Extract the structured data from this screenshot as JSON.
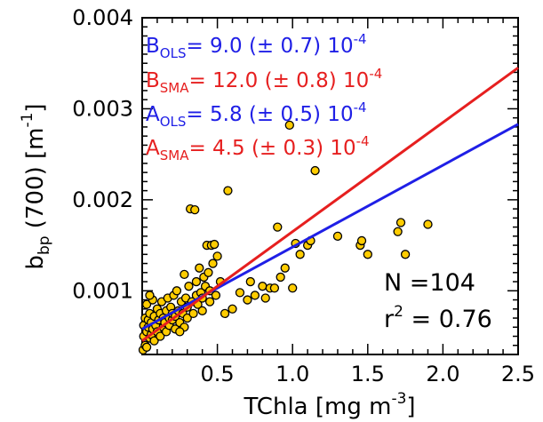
{
  "chart_data": {
    "type": "scatter",
    "title": "",
    "xlabel": {
      "main": "TChla [mg m",
      "sup": "-3",
      "end": "]"
    },
    "ylabel": {
      "main": "b",
      "sub": "bp",
      "mid": " (700) [m",
      "sup": "-1",
      "end": "]"
    },
    "xlim": [
      0,
      2.5
    ],
    "ylim": [
      0.0003,
      0.004
    ],
    "xticks": [
      "0.5",
      "1.0",
      "1.5",
      "2.0",
      "2.5"
    ],
    "xtick_values": [
      0.5,
      1.0,
      1.5,
      2.0,
      2.5
    ],
    "yticks": [
      "0.001",
      "0.002",
      "0.003",
      "0.004"
    ],
    "ytick_values": [
      0.001,
      0.002,
      0.003,
      0.004
    ],
    "grid": false,
    "marker_fill": "#ffcc00",
    "marker_edge": "#000000",
    "points": [
      [
        0.0,
        0.00035
      ],
      [
        0.01,
        0.0005
      ],
      [
        0.01,
        0.00062
      ],
      [
        0.02,
        0.0007
      ],
      [
        0.02,
        0.0004
      ],
      [
        0.03,
        0.00055
      ],
      [
        0.03,
        0.00085
      ],
      [
        0.04,
        0.0006
      ],
      [
        0.04,
        0.00068
      ],
      [
        0.05,
        0.00048
      ],
      [
        0.05,
        0.00075
      ],
      [
        0.06,
        0.00052
      ],
      [
        0.06,
        0.00065
      ],
      [
        0.07,
        0.00058
      ],
      [
        0.07,
        0.0009
      ],
      [
        0.08,
        0.00072
      ],
      [
        0.08,
        0.00045
      ],
      [
        0.09,
        0.00062
      ],
      [
        0.1,
        0.0008
      ],
      [
        0.1,
        0.00055
      ],
      [
        0.11,
        0.00068
      ],
      [
        0.12,
        0.0005
      ],
      [
        0.12,
        0.00075
      ],
      [
        0.13,
        0.00088
      ],
      [
        0.14,
        0.0006
      ],
      [
        0.14,
        0.0007
      ],
      [
        0.15,
        0.00065
      ],
      [
        0.16,
        0.00078
      ],
      [
        0.16,
        0.00055
      ],
      [
        0.17,
        0.00092
      ],
      [
        0.18,
        0.0007
      ],
      [
        0.18,
        0.00062
      ],
      [
        0.19,
        0.00082
      ],
      [
        0.2,
        0.00068
      ],
      [
        0.2,
        0.00075
      ],
      [
        0.21,
        0.00095
      ],
      [
        0.22,
        0.00072
      ],
      [
        0.22,
        0.00058
      ],
      [
        0.23,
        0.001
      ],
      [
        0.24,
        0.00078
      ],
      [
        0.25,
        0.00065
      ],
      [
        0.26,
        0.00088
      ],
      [
        0.27,
        0.00075
      ],
      [
        0.28,
        0.0006
      ],
      [
        0.28,
        0.00118
      ],
      [
        0.29,
        0.00092
      ],
      [
        0.3,
        0.00082
      ],
      [
        0.3,
        0.0007
      ],
      [
        0.31,
        0.00105
      ],
      [
        0.32,
        0.0019
      ],
      [
        0.33,
        0.00088
      ],
      [
        0.34,
        0.00075
      ],
      [
        0.35,
        0.00189
      ],
      [
        0.36,
        0.00095
      ],
      [
        0.36,
        0.0011
      ],
      [
        0.37,
        0.00085
      ],
      [
        0.38,
        0.00125
      ],
      [
        0.39,
        0.00098
      ],
      [
        0.4,
        0.00078
      ],
      [
        0.4,
        0.00092
      ],
      [
        0.41,
        0.00115
      ],
      [
        0.42,
        0.00105
      ],
      [
        0.43,
        0.0015
      ],
      [
        0.44,
        0.0012
      ],
      [
        0.45,
        0.001
      ],
      [
        0.45,
        0.00088
      ],
      [
        0.46,
        0.0015
      ],
      [
        0.47,
        0.0013
      ],
      [
        0.48,
        0.00151
      ],
      [
        0.49,
        0.00095
      ],
      [
        0.5,
        0.00138
      ],
      [
        0.52,
        0.0011
      ],
      [
        0.55,
        0.00075
      ],
      [
        0.57,
        0.0021
      ],
      [
        0.6,
        0.0008
      ],
      [
        0.65,
        0.00098
      ],
      [
        0.7,
        0.0009
      ],
      [
        0.72,
        0.0011
      ],
      [
        0.75,
        0.00095
      ],
      [
        0.8,
        0.00105
      ],
      [
        0.82,
        0.00092
      ],
      [
        0.85,
        0.00103
      ],
      [
        0.88,
        0.00103
      ],
      [
        0.9,
        0.0017
      ],
      [
        0.92,
        0.00115
      ],
      [
        0.95,
        0.00125
      ],
      [
        0.98,
        0.00282
      ],
      [
        1.0,
        0.00103
      ],
      [
        1.02,
        0.00152
      ],
      [
        1.05,
        0.0014
      ],
      [
        1.1,
        0.0015
      ],
      [
        1.12,
        0.00155
      ],
      [
        1.15,
        0.00232
      ],
      [
        1.3,
        0.0016
      ],
      [
        1.45,
        0.0015
      ],
      [
        1.46,
        0.00155
      ],
      [
        1.5,
        0.0014
      ],
      [
        1.7,
        0.00165
      ],
      [
        1.72,
        0.00175
      ],
      [
        1.75,
        0.0014
      ],
      [
        1.9,
        0.00173
      ],
      [
        0.03,
        0.00038
      ],
      [
        0.05,
        0.00095
      ],
      [
        0.25,
        0.00055
      ]
    ],
    "fits": [
      {
        "name": "OLS",
        "color": "#1f1fe6",
        "intercept": 0.00058,
        "slope": 0.0009
      },
      {
        "name": "SMA",
        "color": "#e61f1f",
        "intercept": 0.00045,
        "slope": 0.0012
      }
    ],
    "annotations": [
      {
        "pre": "B",
        "sub": "OLS",
        "mid": "= 9.0 (± 0.7) 10",
        "sup": "-4",
        "color": "#1f1fe6"
      },
      {
        "pre": "B",
        "sub": "SMA",
        "mid": "= 12.0 (± 0.8) 10",
        "sup": "-4",
        "color": "#e61f1f"
      },
      {
        "pre": "A",
        "sub": "OLS",
        "mid": "= 5.8 (± 0.5) 10",
        "sup": "-4",
        "color": "#1f1fe6"
      },
      {
        "pre": "A",
        "sub": "SMA",
        "mid": "= 4.5 (± 0.3) 10",
        "sup": "-4",
        "color": "#e61f1f"
      }
    ],
    "stats": {
      "n": "N =104",
      "r2_pre": "r",
      "r2_sup": "2",
      "r2_end": " = 0.76"
    }
  }
}
